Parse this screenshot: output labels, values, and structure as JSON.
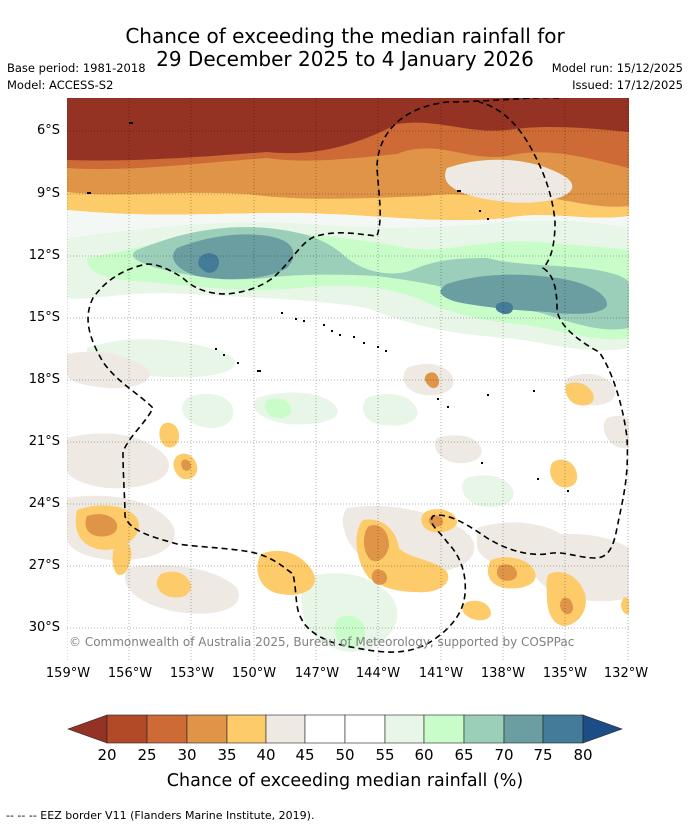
{
  "title": {
    "line1": "Chance of exceeding the median rainfall for",
    "line2": "29 December 2025 to 4 January 2026"
  },
  "meta": {
    "base_period": "Base period: 1981-2018",
    "model": "Model: ACCESS-S2",
    "model_run": "Model run: 15/12/2025",
    "issued": "Issued: 17/12/2025"
  },
  "map": {
    "credit": "© Commonwealth of Australia 2025, Bureau of Meteorology, supported by COSPPac",
    "y_ticks": [
      "6°S",
      "9°S",
      "12°S",
      "15°S",
      "18°S",
      "21°S",
      "24°S",
      "27°S",
      "30°S"
    ],
    "x_ticks": [
      "159°W",
      "156°W",
      "153°W",
      "150°W",
      "147°W",
      "144°W",
      "141°W",
      "138°W",
      "135°W",
      "132°W"
    ]
  },
  "colorbar": {
    "labels": [
      "20",
      "25",
      "30",
      "35",
      "40",
      "45",
      "50",
      "55",
      "60",
      "65",
      "70",
      "75",
      "80"
    ],
    "title": "Chance of exceeding median rainfall (%)",
    "colors": {
      "under": "#943324",
      "c20_25": "#b34a27",
      "c25_30": "#cd6a35",
      "c30_35": "#e09447",
      "c35_40": "#fdcb6a",
      "c40_45": "#eeeae3",
      "c45_55": "#ffffff",
      "c55_60": "#e7f6e7",
      "c60_65": "#c8fcc8",
      "c65_70": "#9ccfb9",
      "c70_75": "#6a9ea1",
      "c75_80": "#437b98",
      "over": "#1d4d87"
    }
  },
  "footer": "--  --  -- EEZ border V11 (Flanders Marine Institute, 2019)."
}
